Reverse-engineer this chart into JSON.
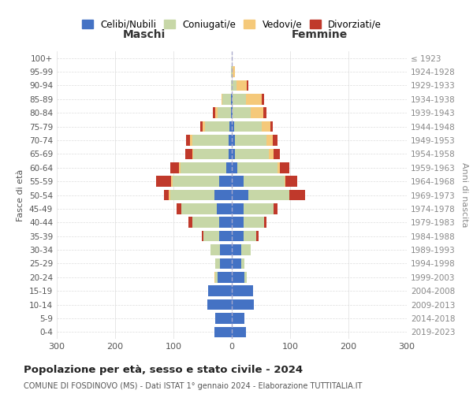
{
  "age_groups": [
    "0-4",
    "5-9",
    "10-14",
    "15-19",
    "20-24",
    "25-29",
    "30-34",
    "35-39",
    "40-44",
    "45-49",
    "50-54",
    "55-59",
    "60-64",
    "65-69",
    "70-74",
    "75-79",
    "80-84",
    "85-89",
    "90-94",
    "95-99",
    "100+"
  ],
  "birth_years": [
    "2019-2023",
    "2014-2018",
    "2009-2013",
    "2004-2008",
    "1999-2003",
    "1994-1998",
    "1989-1993",
    "1984-1988",
    "1979-1983",
    "1974-1978",
    "1969-1973",
    "1964-1968",
    "1959-1963",
    "1954-1958",
    "1949-1953",
    "1944-1948",
    "1939-1943",
    "1934-1938",
    "1929-1933",
    "1924-1928",
    "≤ 1923"
  ],
  "maschi": {
    "celibi": [
      30,
      28,
      42,
      40,
      25,
      20,
      20,
      22,
      22,
      26,
      30,
      22,
      10,
      6,
      6,
      4,
      2,
      2,
      0,
      0,
      0
    ],
    "coniugati": [
      0,
      0,
      0,
      0,
      4,
      8,
      16,
      26,
      46,
      60,
      76,
      80,
      78,
      60,
      62,
      42,
      22,
      14,
      2,
      1,
      0
    ],
    "vedovi": [
      0,
      0,
      0,
      0,
      1,
      0,
      0,
      0,
      0,
      0,
      2,
      2,
      2,
      2,
      4,
      4,
      4,
      2,
      0,
      0,
      0
    ],
    "divorziati": [
      0,
      0,
      0,
      0,
      0,
      0,
      0,
      4,
      6,
      8,
      8,
      26,
      16,
      12,
      6,
      4,
      4,
      0,
      0,
      0,
      0
    ]
  },
  "femmine": {
    "nubili": [
      24,
      22,
      38,
      36,
      22,
      16,
      16,
      20,
      20,
      20,
      28,
      20,
      10,
      6,
      6,
      4,
      2,
      2,
      0,
      0,
      0
    ],
    "coniugate": [
      0,
      0,
      0,
      0,
      4,
      6,
      16,
      22,
      36,
      52,
      70,
      70,
      68,
      58,
      54,
      48,
      30,
      22,
      8,
      2,
      0
    ],
    "vedove": [
      0,
      0,
      0,
      0,
      0,
      0,
      0,
      0,
      0,
      0,
      0,
      2,
      4,
      8,
      10,
      14,
      22,
      28,
      18,
      4,
      0
    ],
    "divorziate": [
      0,
      0,
      0,
      0,
      0,
      0,
      0,
      4,
      4,
      6,
      28,
      20,
      16,
      10,
      8,
      4,
      6,
      4,
      2,
      0,
      0
    ]
  },
  "colors": {
    "celibi": "#4472C4",
    "coniugati": "#C7D7A7",
    "vedovi": "#F5C97A",
    "divorziati": "#C0392B"
  },
  "title": "Popolazione per età, sesso e stato civile - 2024",
  "subtitle": "COMUNE DI FOSDINOVO (MS) - Dati ISTAT 1° gennaio 2024 - Elaborazione TUTTITALIA.IT",
  "xlabel_left": "Maschi",
  "xlabel_right": "Femmine",
  "ylabel_left": "Fasce di età",
  "ylabel_right": "Anni di nascita",
  "xlim": 300,
  "legend_labels": [
    "Celibi/Nubili",
    "Coniugati/e",
    "Vedovi/e",
    "Divorziati/e"
  ],
  "background_color": "#ffffff"
}
